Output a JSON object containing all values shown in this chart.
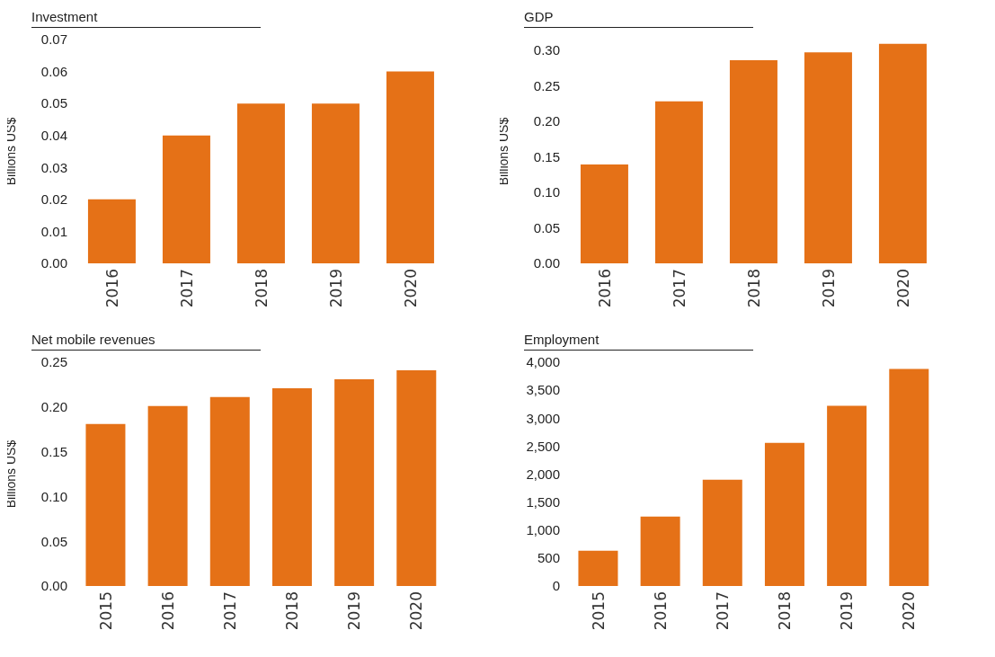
{
  "chart_data": [
    {
      "type": "bar",
      "title": "Investment",
      "ylabel": "Billions US$",
      "categories": [
        "2016",
        "2017",
        "2018",
        "2019",
        "2020"
      ],
      "values": [
        0.02,
        0.04,
        0.05,
        0.05,
        0.06
      ],
      "color": "#e57117",
      "ylim": [
        0,
        0.07
      ],
      "yticks": [
        {
          "value": 0,
          "label": "0.00"
        },
        {
          "value": 0.01,
          "label": "0.01"
        },
        {
          "value": 0.02,
          "label": "0.02"
        },
        {
          "value": 0.03,
          "label": "0.03"
        },
        {
          "value": 0.04,
          "label": "0.04"
        },
        {
          "value": 0.05,
          "label": "0.05"
        },
        {
          "value": 0.06,
          "label": "0.06"
        },
        {
          "value": 0.07,
          "label": "0.07"
        }
      ]
    },
    {
      "type": "bar",
      "title": "GDP",
      "ylabel": "Billions US$",
      "categories": [
        "2016",
        "2017",
        "2018",
        "2019",
        "2020"
      ],
      "values": [
        0.139,
        0.228,
        0.286,
        0.297,
        0.309
      ],
      "color": "#e57117",
      "ylim": [
        0,
        0.315
      ],
      "yticks": [
        {
          "value": 0,
          "label": "0.00"
        },
        {
          "value": 0.05,
          "label": "0.05"
        },
        {
          "value": 0.1,
          "label": "0.10"
        },
        {
          "value": 0.15,
          "label": "0.15"
        },
        {
          "value": 0.2,
          "label": "0.20"
        },
        {
          "value": 0.25,
          "label": "0.25"
        },
        {
          "value": 0.3,
          "label": "0.30"
        }
      ]
    },
    {
      "type": "bar",
      "title": "Net mobile revenues",
      "ylabel": "Billions US$",
      "categories": [
        "2015",
        "2016",
        "2017",
        "2018",
        "2019",
        "2020"
      ],
      "values": [
        0.181,
        0.201,
        0.211,
        0.221,
        0.231,
        0.241
      ],
      "color": "#e57117",
      "ylim": [
        0,
        0.25
      ],
      "yticks": [
        {
          "value": 0,
          "label": "0.00"
        },
        {
          "value": 0.05,
          "label": "0.05"
        },
        {
          "value": 0.1,
          "label": "0.10"
        },
        {
          "value": 0.15,
          "label": "0.15"
        },
        {
          "value": 0.2,
          "label": "0.20"
        },
        {
          "value": 0.25,
          "label": "0.25"
        }
      ]
    },
    {
      "type": "bar",
      "title": "Employment",
      "categories": [
        "2015",
        "2016",
        "2017",
        "2018",
        "2019",
        "2020"
      ],
      "values": [
        630,
        1240,
        1900,
        2560,
        3220,
        3880
      ],
      "color": "#e57117",
      "ylim": [
        0,
        4000
      ],
      "yticks": [
        0,
        500,
        {
          "value": 1000,
          "label": "1,000"
        },
        {
          "value": 1500,
          "label": "1,500"
        },
        {
          "value": 2000,
          "label": "2,000"
        },
        {
          "value": 2500,
          "label": "2,500"
        },
        {
          "value": 3000,
          "label": "3,000"
        },
        {
          "value": 3500,
          "label": "3,500"
        },
        {
          "value": 4000,
          "label": "4,000"
        }
      ]
    }
  ]
}
